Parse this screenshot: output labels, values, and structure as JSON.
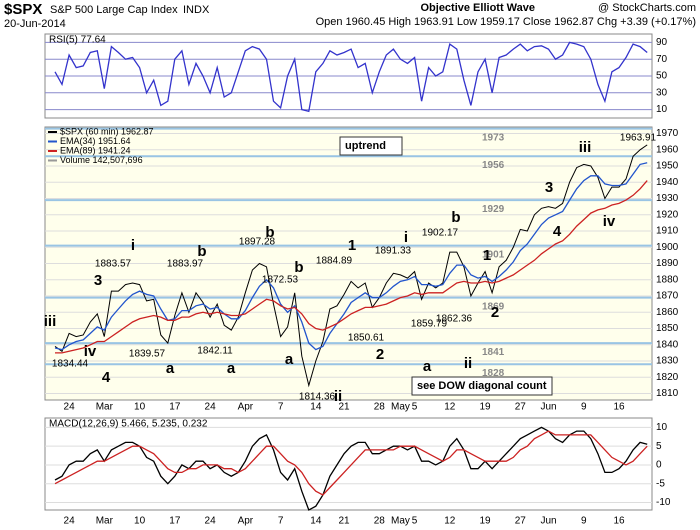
{
  "header": {
    "symbol": "$SPX",
    "name": "S&P 500 Large Cap Index",
    "exchange": "INDX",
    "date": "20-Jun-2014",
    "quote": "Open 1960.45  High 1963.91  Low 1959.17  Close 1962.87  Chg +3.39 (+0.17%)",
    "title": "Objective Elliott Wave",
    "credit": "@ StockCharts.com"
  },
  "chart_data": [
    {
      "type": "line",
      "label": "RSI(5) 77.64",
      "ylim": [
        0,
        100
      ],
      "yticks": [
        10,
        30,
        50,
        70,
        90
      ],
      "series": [
        {
          "name": "RSI(5)",
          "color": "#3333cc",
          "values": [
            55,
            40,
            75,
            60,
            62,
            78,
            80,
            35,
            85,
            78,
            70,
            72,
            60,
            30,
            45,
            15,
            20,
            70,
            80,
            40,
            65,
            50,
            30,
            60,
            25,
            30,
            55,
            80,
            85,
            82,
            70,
            20,
            12,
            50,
            70,
            10,
            8,
            55,
            65,
            80,
            75,
            78,
            82,
            60,
            65,
            30,
            55,
            75,
            82,
            70,
            65,
            72,
            20,
            60,
            50,
            55,
            88,
            82,
            45,
            15,
            55,
            70,
            30,
            72,
            75,
            82,
            88,
            80,
            85,
            86,
            82,
            70,
            75,
            90,
            88,
            85,
            70,
            40,
            20,
            55,
            60,
            72,
            88,
            85,
            78
          ]
        }
      ]
    },
    {
      "type": "line",
      "ylim": [
        1806,
        1974
      ],
      "yticks": [
        1810,
        1820,
        1830,
        1840,
        1850,
        1860,
        1870,
        1880,
        1890,
        1900,
        1910,
        1920,
        1930,
        1940,
        1950,
        1960,
        1970
      ],
      "categories": [
        null,
        null,
        "24",
        null,
        null,
        null,
        null,
        "Mar",
        null,
        null,
        null,
        null,
        "10",
        null,
        null,
        null,
        null,
        "17",
        null,
        null,
        null,
        null,
        "24",
        null,
        null,
        null,
        null,
        "Apr",
        null,
        null,
        null,
        null,
        "7",
        null,
        null,
        null,
        null,
        "14",
        null,
        null,
        null,
        "21",
        null,
        null,
        null,
        null,
        "28",
        null,
        null,
        "May",
        null,
        "5",
        null,
        null,
        null,
        null,
        "12",
        null,
        null,
        null,
        null,
        "19",
        null,
        null,
        null,
        null,
        "27",
        null,
        null,
        null,
        "Jun",
        null,
        null,
        null,
        null,
        "9",
        null,
        null,
        null,
        null,
        "16",
        null,
        null,
        null,
        null
      ],
      "legend": [
        "$SPX (60 min) 1962.87",
        "EMA(34) 1951.64",
        "EMA(89) 1941.24",
        "Volume 142,507,696"
      ],
      "series": [
        {
          "name": "$SPX",
          "color": "#000000",
          "values": [
            1839,
            1836,
            1847,
            1845,
            1846,
            1854,
            1859,
            1845,
            1873,
            1873,
            1877,
            1878,
            1877,
            1867,
            1868,
            1846,
            1841,
            1858,
            1872,
            1860,
            1872,
            1866,
            1857,
            1865,
            1852,
            1849,
            1857,
            1872,
            1886,
            1890,
            1888,
            1865,
            1845,
            1851,
            1872,
            1833,
            1815,
            1830,
            1842,
            1862,
            1864,
            1871,
            1879,
            1875,
            1878,
            1863,
            1869,
            1878,
            1884,
            1883,
            1881,
            1885,
            1868,
            1878,
            1875,
            1878,
            1897,
            1897,
            1888,
            1870,
            1878,
            1885,
            1872,
            1888,
            1892,
            1900,
            1911,
            1910,
            1920,
            1924,
            1925,
            1924,
            1927,
            1940,
            1949,
            1951,
            1950,
            1943,
            1930,
            1937,
            1937,
            1942,
            1956,
            1960,
            1963
          ]
        },
        {
          "name": "EMA(34)",
          "color": "#2255cc",
          "values": [
            1838,
            1837,
            1840,
            1842,
            1843,
            1847,
            1851,
            1849,
            1857,
            1862,
            1867,
            1871,
            1873,
            1871,
            1870,
            1862,
            1855,
            1856,
            1861,
            1861,
            1864,
            1865,
            1862,
            1863,
            1859,
            1856,
            1856,
            1861,
            1869,
            1876,
            1880,
            1875,
            1865,
            1860,
            1864,
            1854,
            1841,
            1837,
            1839,
            1847,
            1853,
            1859,
            1866,
            1869,
            1872,
            1869,
            1869,
            1872,
            1876,
            1879,
            1880,
            1882,
            1877,
            1877,
            1876,
            1877,
            1884,
            1889,
            1889,
            1883,
            1881,
            1882,
            1879,
            1882,
            1886,
            1891,
            1898,
            1902,
            1908,
            1914,
            1918,
            1920,
            1922,
            1929,
            1936,
            1941,
            1944,
            1944,
            1939,
            1938,
            1938,
            1939,
            1945,
            1951,
            1952
          ]
        },
        {
          "name": "EMA(89)",
          "color": "#cc2222",
          "values": [
            1835,
            1835,
            1836,
            1837,
            1838,
            1840,
            1842,
            1842,
            1845,
            1848,
            1851,
            1854,
            1856,
            1857,
            1858,
            1857,
            1855,
            1855,
            1857,
            1857,
            1859,
            1860,
            1859,
            1860,
            1859,
            1858,
            1858,
            1859,
            1862,
            1865,
            1868,
            1867,
            1864,
            1862,
            1863,
            1859,
            1853,
            1850,
            1849,
            1851,
            1853,
            1856,
            1859,
            1861,
            1863,
            1863,
            1864,
            1865,
            1867,
            1869,
            1870,
            1872,
            1871,
            1872,
            1872,
            1872,
            1875,
            1878,
            1879,
            1878,
            1878,
            1879,
            1878,
            1879,
            1881,
            1883,
            1886,
            1889,
            1892,
            1896,
            1899,
            1902,
            1904,
            1908,
            1913,
            1917,
            1921,
            1923,
            1924,
            1926,
            1927,
            1929,
            1932,
            1936,
            1941
          ]
        }
      ],
      "levels": [
        1973,
        1956,
        1929,
        1901,
        1869,
        1841,
        1828
      ],
      "level_color": "#99c4e4",
      "boxes": [
        "uptrend",
        "see DOW diagonal count"
      ],
      "annotations": [
        {
          "text": "iii",
          "color": "#2e8b2e"
        },
        {
          "text": "iv",
          "color": "#2a8080"
        },
        {
          "text": "3",
          "color": "#333399"
        },
        {
          "text": "4",
          "color": "#333399"
        },
        {
          "text": "i",
          "color": "#800080"
        },
        {
          "text": "a",
          "color": "#2a8080"
        },
        {
          "text": "b",
          "color": "#2a8080"
        },
        {
          "text": "a",
          "color": "#2a8080"
        },
        {
          "text": "b",
          "color": "#333399"
        },
        {
          "text": "b",
          "color": "#2a8080"
        },
        {
          "text": "a",
          "color": "#2a8080"
        },
        {
          "text": "ii",
          "color": "#800080"
        },
        {
          "text": "1",
          "color": "#333399"
        },
        {
          "text": "2",
          "color": "#333399"
        },
        {
          "text": "i",
          "color": "#2e8b2e"
        },
        {
          "text": "b",
          "color": "#e06000"
        },
        {
          "text": "a",
          "color": "#e06000"
        },
        {
          "text": "1",
          "color": "#ee3300"
        },
        {
          "text": "ii",
          "color": "#2a8080"
        },
        {
          "text": "2",
          "color": "#ee3300"
        },
        {
          "text": "3",
          "color": "#e06000"
        },
        {
          "text": "4",
          "color": "#e06000"
        },
        {
          "text": "iii",
          "color": "#2e8b2e"
        },
        {
          "text": "iv",
          "color": "#2a8080"
        },
        {
          "text": "1883.57",
          "color": "#000000"
        },
        {
          "text": "1883.97",
          "color": "#000000"
        },
        {
          "text": "1897.28",
          "color": "#000000"
        },
        {
          "text": "1872.53",
          "color": "#000000"
        },
        {
          "text": "1884.89",
          "color": "#000000"
        },
        {
          "text": "1891.33",
          "color": "#000000"
        },
        {
          "text": "1902.17",
          "color": "#000000"
        },
        {
          "text": "1859.79",
          "color": "#000000"
        },
        {
          "text": "1862.36",
          "color": "#000000"
        },
        {
          "text": "1850.61",
          "color": "#000000"
        },
        {
          "text": "1839.57",
          "color": "#000000"
        },
        {
          "text": "1842.11",
          "color": "#000000"
        },
        {
          "text": "1834.44",
          "color": "#000000"
        },
        {
          "text": "1814.36",
          "color": "#000000"
        },
        {
          "text": "1963.91",
          "color": "#000000"
        }
      ]
    },
    {
      "type": "line",
      "label": "MACD(12,26,9) 5.466, 5.235, 0.232",
      "ylim": [
        -12,
        12.5
      ],
      "yticks": [
        -10,
        -5,
        0,
        5,
        10
      ],
      "series": [
        {
          "name": "MACD",
          "color": "#000000",
          "values": [
            -4,
            -3,
            0,
            1,
            1,
            3,
            4,
            1,
            4,
            5,
            6,
            6,
            5,
            2,
            1,
            -3,
            -5,
            -3,
            0,
            -1,
            1,
            1,
            -1,
            0,
            -2,
            -3,
            -2,
            1,
            5,
            7,
            8,
            4,
            -2,
            -4,
            -1,
            -7,
            -12,
            -11,
            -8,
            -3,
            0,
            3,
            5,
            6,
            6,
            3,
            3,
            4,
            5,
            5,
            4,
            5,
            1,
            1,
            0,
            1,
            5,
            7,
            4,
            -1,
            -1,
            1,
            -1,
            1,
            3,
            5,
            7,
            8,
            9,
            10,
            9,
            7,
            6,
            8,
            9,
            9,
            7,
            3,
            -2,
            -2,
            -1,
            1,
            4,
            6,
            5.5
          ]
        },
        {
          "name": "Signal",
          "color": "#cc2222",
          "values": [
            -5,
            -4,
            -3,
            -2,
            -1,
            0,
            1,
            1,
            2,
            3,
            4,
            5,
            5,
            4,
            3,
            1,
            -1,
            -2,
            -2,
            -1,
            -1,
            0,
            0,
            0,
            -1,
            -1,
            -2,
            -1,
            1,
            3,
            5,
            5,
            3,
            1,
            0,
            -2,
            -5,
            -7,
            -8,
            -6,
            -4,
            -2,
            0,
            2,
            4,
            4,
            4,
            4,
            4,
            5,
            5,
            5,
            4,
            3,
            2,
            1,
            2,
            4,
            4,
            3,
            2,
            1,
            1,
            1,
            1,
            2,
            4,
            5,
            7,
            8,
            9,
            8,
            8,
            8,
            8,
            8,
            8,
            6,
            4,
            2,
            1,
            0,
            1,
            3,
            5
          ]
        }
      ]
    }
  ]
}
